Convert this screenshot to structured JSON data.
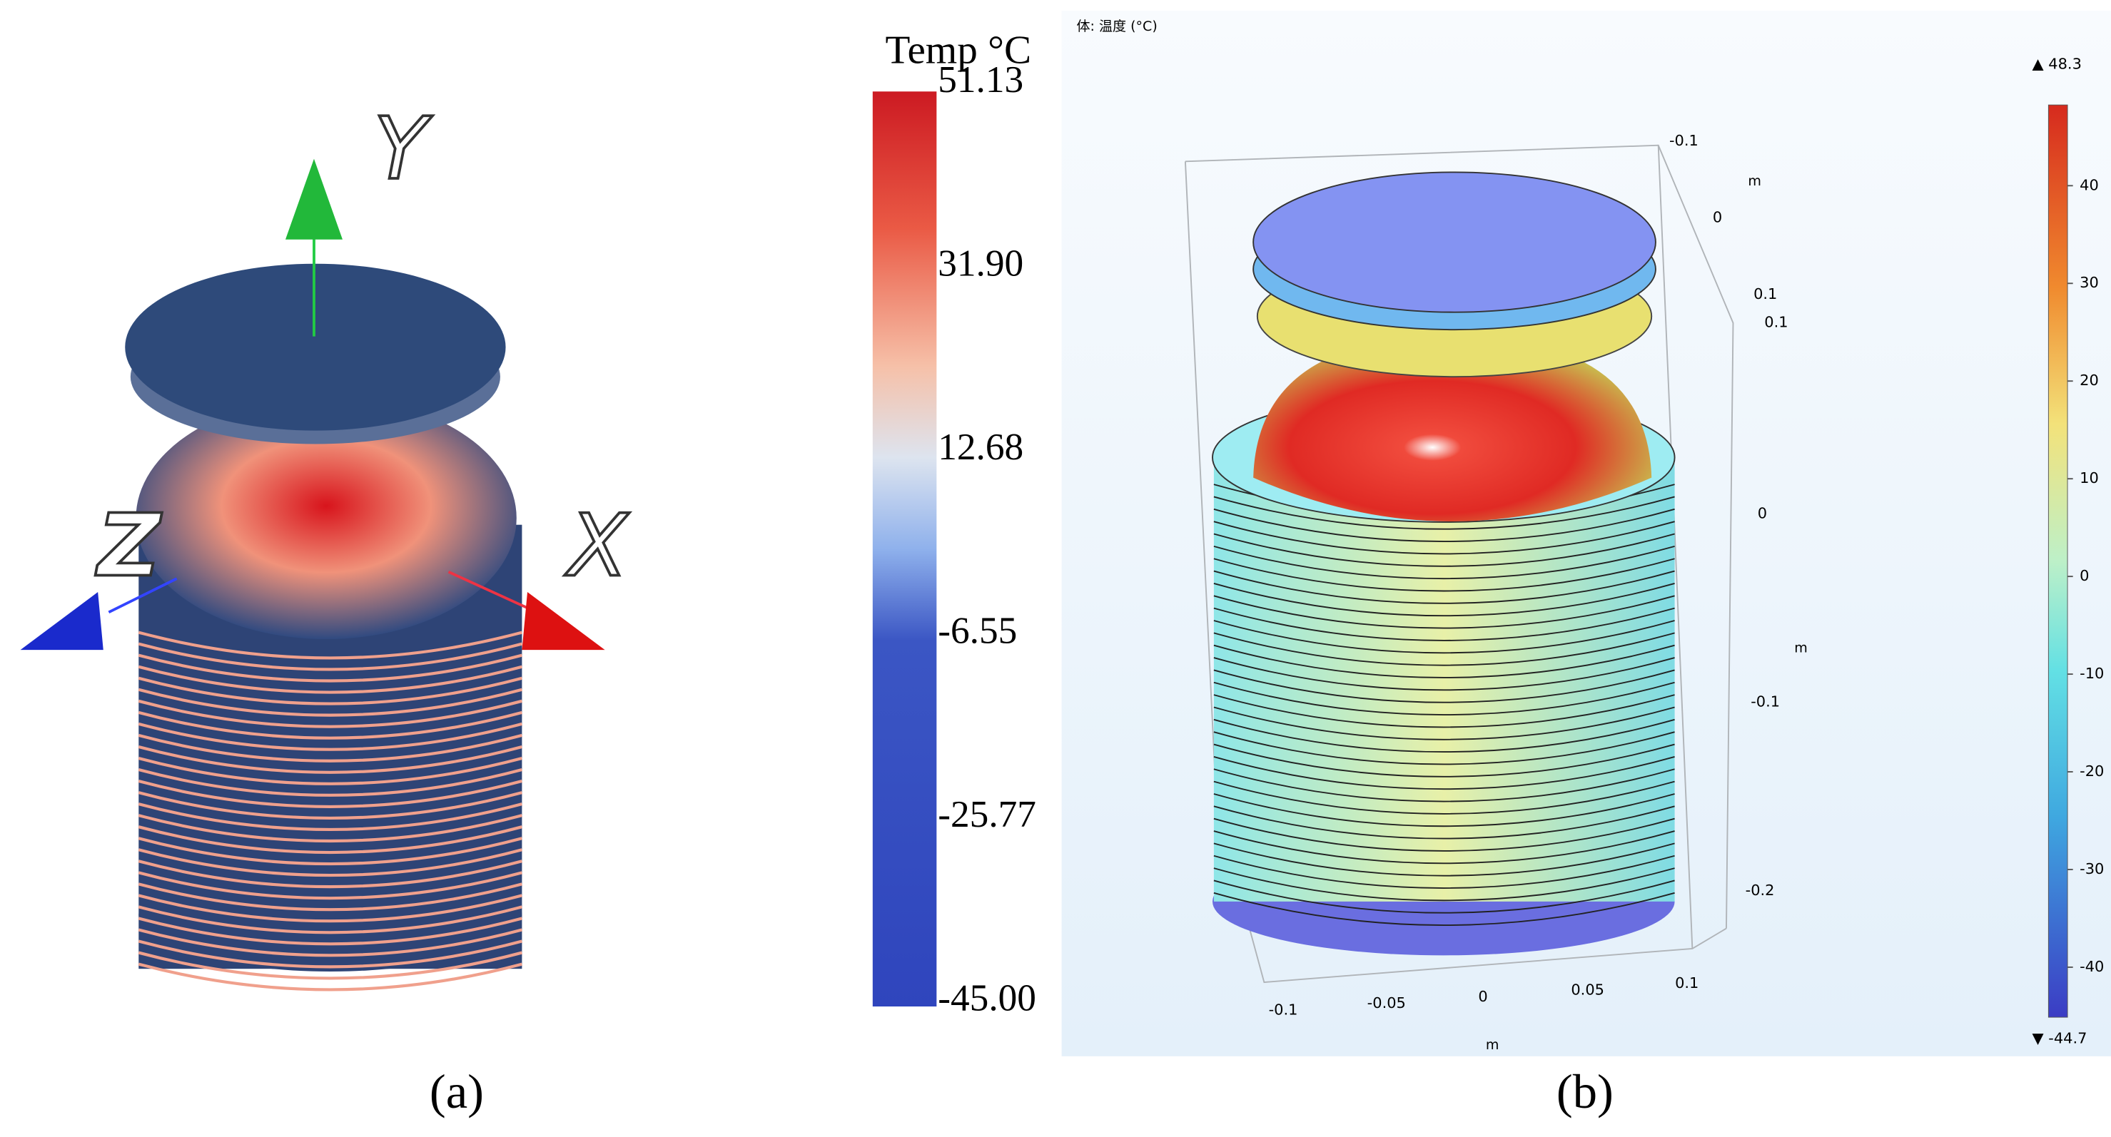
{
  "panel_a": {
    "legend_title": "Temp °C",
    "colorbar_labels": [
      "51.13",
      "31.90",
      "12.68",
      "-6.55",
      "-25.77",
      "-45.00"
    ],
    "axes": [
      "Y",
      "Z",
      "X"
    ],
    "caption": "(a)"
  },
  "panel_b": {
    "title": "体: 温度 (°C)",
    "max_label": "▲ 48.3",
    "min_label": "▼ -44.7",
    "colorbar_labels": [
      "40",
      "30",
      "20",
      "10",
      "0",
      "-10",
      "-20",
      "-30",
      "-40"
    ],
    "right_axis": [
      "-0.1",
      "0",
      "0.1",
      "0.1",
      "0",
      "-0.1",
      "-0.2"
    ],
    "axis_units": [
      "m",
      "m",
      "m"
    ],
    "bottom_axis": [
      "-0.1",
      "-0.05",
      "0",
      "0.05",
      "0.1"
    ],
    "caption": "(b)"
  }
}
